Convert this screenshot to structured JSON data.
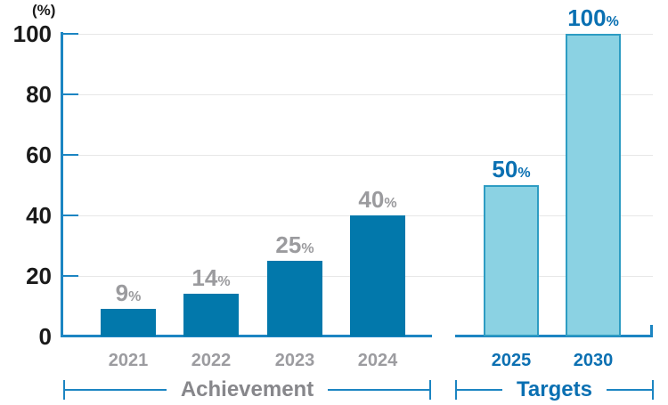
{
  "chart_data": {
    "type": "bar",
    "unit_label": "(%)",
    "value_suffix": "%",
    "ylim": [
      0,
      100
    ],
    "yticks": [
      0,
      20,
      40,
      60,
      80,
      100
    ],
    "grid": true,
    "legend_position": "none",
    "axis_color": "#1c85c2",
    "gridline_color": "#e7e7e7",
    "ytick_label_color": "#1a1a1a",
    "groups": [
      {
        "label": "Achievement",
        "categories": [
          "2021",
          "2022",
          "2023",
          "2024"
        ],
        "values": [
          9,
          14,
          25,
          40
        ],
        "bar_style": "solid",
        "bar_color": "#0278ab",
        "value_label_color": "#9b9b9e",
        "tick_label_color": "#9c9ca0",
        "label_color": "#87878b"
      },
      {
        "label": "Targets",
        "categories": [
          "2025",
          "2030"
        ],
        "values": [
          50,
          100
        ],
        "bar_style": "outlined",
        "bar_color": "#8bd2e3",
        "bar_border_color": "#2d9cc3",
        "value_label_color": "#0a70b2",
        "tick_label_color": "#0c70b2",
        "label_color": "#0b70b2"
      }
    ]
  }
}
